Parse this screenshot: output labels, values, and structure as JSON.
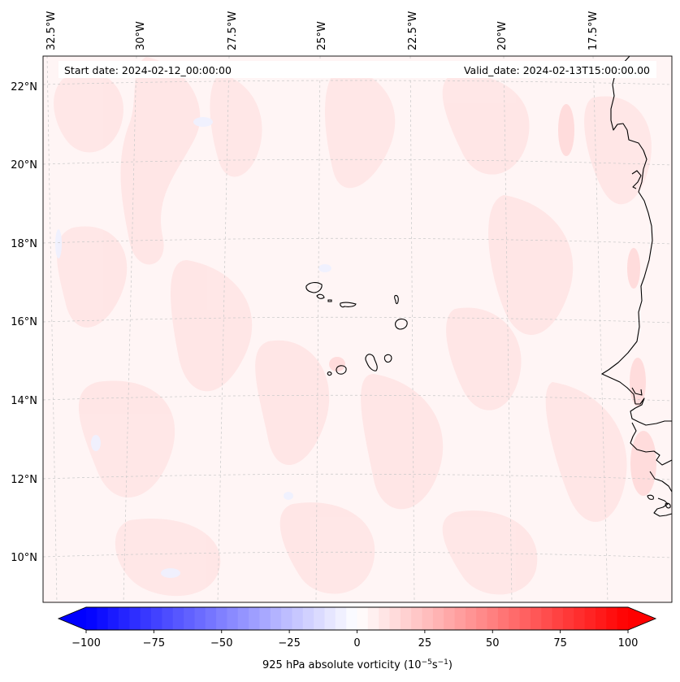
{
  "map": {
    "start_date": "Start date: 2024-02-12_00:00:00",
    "valid_date": "Valid_date: 2024-02-13T15:00:00.00",
    "lon_labels": [
      "32.5°W",
      "30°W",
      "27.5°W",
      "25°W",
      "22.5°W",
      "20°W",
      "17.5°W"
    ],
    "lat_labels": [
      "22°N",
      "20°N",
      "18°N",
      "16°N",
      "14°N",
      "12°N",
      "10°N"
    ],
    "features": [
      "Cape Verde islands",
      "West African coastline"
    ],
    "colors": {
      "coast": "#000000",
      "grid": "#c8c8c8",
      "field_base": "#fff5f5",
      "field_pos": "#ffe3e3",
      "field_neg": "#f2f4ff"
    }
  },
  "colorbar": {
    "label_prefix": "925 hPa absolute vorticity (10",
    "label_exp1": "−5",
    "label_mid": "s",
    "label_exp2": "−1",
    "label_suffix": ")",
    "ticks": [
      "−100",
      "−75",
      "−50",
      "−25",
      "0",
      "25",
      "50",
      "75",
      "100"
    ],
    "min": -100,
    "max": 100,
    "levels": 50,
    "colors": {
      "neg_end": "#0000ff",
      "mid": "#ffffff",
      "pos_end": "#ff0000"
    }
  }
}
